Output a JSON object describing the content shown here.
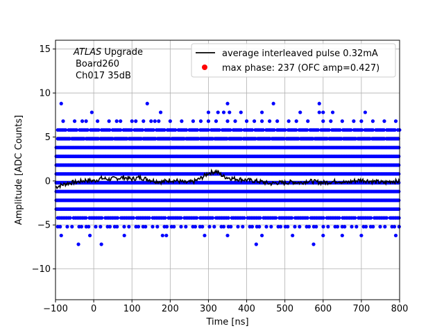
{
  "chart_data": {
    "type": "scatter",
    "title": "",
    "xlabel": "Time [ns]",
    "ylabel": "Amplitude [ADC Counts]",
    "xlim": [
      -100,
      800
    ],
    "ylim": [
      -13.5,
      16
    ],
    "xticks": [
      -100,
      0,
      100,
      200,
      300,
      400,
      500,
      600,
      700,
      800
    ],
    "yticks": [
      -10,
      -5,
      0,
      5,
      10,
      15
    ],
    "grid": true,
    "annotation": {
      "line1_italic": "ATLAS",
      "line1_rest": " Upgrade",
      "line2": "Board260",
      "line3": "Ch017 35dB"
    },
    "legend": {
      "placement": "top-right",
      "entries": [
        {
          "label": "average interleaved pulse 0.32mA",
          "marker": "line",
          "color": "#000000"
        },
        {
          "label": "max phase: 237 (OFC amp=0.427)",
          "marker": "dot",
          "color": "#ff0000"
        }
      ]
    },
    "series": [
      {
        "role": "samples",
        "color": "#0000ff",
        "levels": [
          -6.2,
          -5.2,
          -4.2,
          -3.2,
          -2.2,
          -1.2,
          -0.2,
          0.8,
          1.8,
          2.8,
          3.8,
          4.8,
          5.8,
          6.8,
          7.8,
          8.8
        ],
        "full_levels": [
          -3.2,
          -2.2,
          -1.2,
          -0.2,
          0.8,
          1.8,
          2.8,
          3.8
        ],
        "sparse_points": [
          {
            "x": -85,
            "y": -6.2
          },
          {
            "x": -10,
            "y": -6.2
          },
          {
            "x": 80,
            "y": -6.2
          },
          {
            "x": 180,
            "y": -6.2
          },
          {
            "x": 190,
            "y": -6.2
          },
          {
            "x": 290,
            "y": -6.2
          },
          {
            "x": 350,
            "y": -6.2
          },
          {
            "x": 440,
            "y": -6.2
          },
          {
            "x": 520,
            "y": -6.2
          },
          {
            "x": 600,
            "y": -6.2
          },
          {
            "x": 650,
            "y": -6.2
          },
          {
            "x": 700,
            "y": -6.2
          },
          {
            "x": 790,
            "y": -6.2
          },
          {
            "x": -40,
            "y": -7.2
          },
          {
            "x": 20,
            "y": -7.2
          },
          {
            "x": 425,
            "y": -7.2
          },
          {
            "x": 575,
            "y": -7.2
          },
          {
            "x": -80,
            "y": 6.8
          },
          {
            "x": -50,
            "y": 6.8
          },
          {
            "x": -30,
            "y": 6.8
          },
          {
            "x": -20,
            "y": 6.8
          },
          {
            "x": 10,
            "y": 6.8
          },
          {
            "x": 40,
            "y": 6.8
          },
          {
            "x": 60,
            "y": 6.8
          },
          {
            "x": 70,
            "y": 6.8
          },
          {
            "x": 100,
            "y": 6.8
          },
          {
            "x": 110,
            "y": 6.8
          },
          {
            "x": 130,
            "y": 6.8
          },
          {
            "x": 150,
            "y": 6.8
          },
          {
            "x": 160,
            "y": 6.8
          },
          {
            "x": 170,
            "y": 6.8
          },
          {
            "x": 200,
            "y": 6.8
          },
          {
            "x": 230,
            "y": 6.8
          },
          {
            "x": 260,
            "y": 6.8
          },
          {
            "x": 280,
            "y": 6.8
          },
          {
            "x": 300,
            "y": 6.8
          },
          {
            "x": 320,
            "y": 6.8
          },
          {
            "x": 350,
            "y": 6.8
          },
          {
            "x": 370,
            "y": 6.8
          },
          {
            "x": 400,
            "y": 6.8
          },
          {
            "x": 420,
            "y": 6.8
          },
          {
            "x": 440,
            "y": 6.8
          },
          {
            "x": 460,
            "y": 6.8
          },
          {
            "x": 480,
            "y": 6.8
          },
          {
            "x": 510,
            "y": 6.8
          },
          {
            "x": 530,
            "y": 6.8
          },
          {
            "x": 560,
            "y": 6.8
          },
          {
            "x": 600,
            "y": 6.8
          },
          {
            "x": 620,
            "y": 6.8
          },
          {
            "x": 650,
            "y": 6.8
          },
          {
            "x": 680,
            "y": 6.8
          },
          {
            "x": 700,
            "y": 6.8
          },
          {
            "x": 730,
            "y": 6.8
          },
          {
            "x": 760,
            "y": 6.8
          },
          {
            "x": 790,
            "y": 6.8
          },
          {
            "x": -5,
            "y": 7.8
          },
          {
            "x": 175,
            "y": 7.8
          },
          {
            "x": 300,
            "y": 7.8
          },
          {
            "x": 325,
            "y": 7.8
          },
          {
            "x": 340,
            "y": 7.8
          },
          {
            "x": 355,
            "y": 7.8
          },
          {
            "x": 385,
            "y": 7.8
          },
          {
            "x": 440,
            "y": 7.8
          },
          {
            "x": 540,
            "y": 7.8
          },
          {
            "x": 590,
            "y": 7.8
          },
          {
            "x": 600,
            "y": 7.8
          },
          {
            "x": 625,
            "y": 7.8
          },
          {
            "x": 710,
            "y": 7.8
          },
          {
            "x": -85,
            "y": 8.8
          },
          {
            "x": 140,
            "y": 8.8
          },
          {
            "x": 350,
            "y": 8.8
          },
          {
            "x": 470,
            "y": 8.8
          },
          {
            "x": 590,
            "y": 8.8
          }
        ]
      },
      {
        "role": "average_pulse",
        "color": "#000000",
        "x": [
          -100,
          -80,
          -60,
          -40,
          -20,
          0,
          20,
          40,
          60,
          80,
          100,
          120,
          140,
          160,
          180,
          200,
          220,
          240,
          260,
          280,
          300,
          320,
          340,
          360,
          380,
          400,
          420,
          440,
          460,
          480,
          500,
          520,
          540,
          560,
          580,
          600,
          620,
          640,
          660,
          680,
          700,
          720,
          740,
          760,
          780,
          800
        ],
        "y": [
          -0.7,
          -0.4,
          -0.2,
          -0.1,
          0.1,
          0.0,
          0.3,
          0.2,
          0.3,
          0.4,
          0.2,
          0.4,
          0.2,
          0.0,
          -0.1,
          0.1,
          0.0,
          -0.2,
          -0.1,
          0.3,
          0.9,
          1.1,
          0.5,
          0.3,
          0.2,
          0.1,
          0.0,
          -0.1,
          -0.3,
          -0.2,
          -0.2,
          -0.1,
          -0.2,
          0.0,
          -0.1,
          -0.2,
          -0.1,
          0.0,
          -0.2,
          0.0,
          0.1,
          0.0,
          -0.1,
          -0.2,
          0.0,
          -0.1
        ]
      }
    ]
  }
}
